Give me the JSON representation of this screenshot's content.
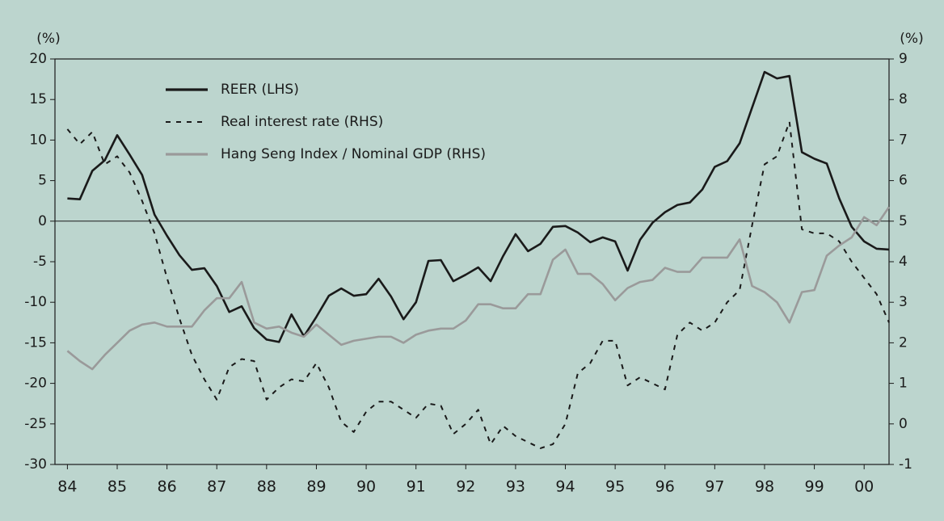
{
  "chart_data": {
    "type": "line",
    "ylabel": "(%)",
    "y2label": "(%)",
    "x": [
      84,
      84.25,
      84.5,
      84.75,
      85,
      85.25,
      85.5,
      85.75,
      86,
      86.25,
      86.5,
      86.75,
      87,
      87.25,
      87.5,
      87.75,
      88,
      88.25,
      88.5,
      88.75,
      89,
      89.25,
      89.5,
      89.75,
      90,
      90.25,
      90.5,
      90.75,
      91,
      91.25,
      91.5,
      91.75,
      92,
      92.25,
      92.5,
      92.75,
      93,
      93.25,
      93.5,
      93.75,
      94,
      94.25,
      94.5,
      94.75,
      95,
      95.25,
      95.5,
      95.75,
      96,
      96.25,
      96.5,
      96.75,
      97,
      97.25,
      97.5,
      97.75,
      98,
      98.25,
      98.5,
      98.75,
      99,
      99.25,
      99.5,
      99.75,
      100,
      100.25,
      100.5
    ],
    "xlim": [
      83.75,
      100.5
    ],
    "xticks": [
      84,
      85,
      86,
      87,
      88,
      89,
      90,
      91,
      92,
      93,
      94,
      95,
      96,
      97,
      98,
      99,
      {
        "value": 100,
        "label": "00"
      }
    ],
    "ylim": [
      -30,
      20
    ],
    "yticks": [
      20,
      15,
      10,
      5,
      0,
      -5,
      -10,
      -15,
      -20,
      -25,
      -30
    ],
    "y2lim": [
      -1,
      9
    ],
    "y2ticks": [
      9,
      8,
      7,
      6,
      5,
      4,
      3,
      2,
      1,
      0,
      -1
    ],
    "series": [
      {
        "name": "REER (LHS)",
        "color": "#1a1a1a",
        "dash": "solid",
        "values": [
          2.8,
          2.7,
          6.2,
          7.5,
          10.6,
          8.2,
          5.7,
          0.8,
          -1.8,
          -4.2,
          -6.0,
          -5.8,
          -8.0,
          -11.2,
          -10.5,
          -13.2,
          -14.6,
          -14.9,
          -11.5,
          -14.2,
          -11.8,
          -9.2,
          -8.3,
          -9.2,
          -9.0,
          -7.1,
          -9.3,
          -12.1,
          -10.0,
          -4.9,
          -4.8,
          -7.4,
          -6.6,
          -5.7,
          -7.4,
          -4.3,
          -1.6,
          -3.7,
          -2.8,
          -0.7,
          -0.6,
          -1.4,
          -2.6,
          -2.0,
          -2.5,
          -6.1,
          -2.3,
          -0.2,
          1.1,
          2.0,
          2.3,
          3.9,
          6.7,
          7.4,
          9.6,
          14.0,
          18.4,
          17.6,
          17.9,
          8.5,
          7.7,
          7.1,
          2.8,
          -0.7,
          -2.5,
          -3.4,
          -3.5
        ]
      },
      {
        "name": "Real interest rate (RHS)",
        "color": "#1a1a1a",
        "dash": "dashed",
        "axis": "y2",
        "values": [
          7.27,
          6.9,
          7.2,
          6.4,
          6.6,
          6.2,
          5.5,
          4.7,
          3.6,
          2.6,
          1.7,
          1.1,
          0.6,
          1.4,
          1.6,
          1.55,
          0.6,
          0.9,
          1.1,
          1.05,
          1.5,
          0.9,
          0.05,
          -0.2,
          0.3,
          0.55,
          0.55,
          0.35,
          0.15,
          0.5,
          0.45,
          -0.25,
          0.0,
          0.35,
          -0.5,
          -0.05,
          -0.3,
          -0.45,
          -0.6,
          -0.5,
          0.0,
          1.25,
          1.5,
          2.05,
          2.05,
          0.95,
          1.15,
          1.0,
          0.85,
          2.2,
          2.5,
          2.3,
          2.5,
          3.0,
          3.3,
          4.9,
          6.4,
          6.6,
          7.45,
          4.8,
          4.7,
          4.7,
          4.5,
          4.0,
          3.6,
          3.2,
          2.5
        ]
      },
      {
        "name": "Hang Seng Index / Nominal GDP (RHS)",
        "color": "#9a9a9a",
        "dash": "solid",
        "axis": "y2",
        "values": [
          1.8,
          1.55,
          1.35,
          1.7,
          2.0,
          2.3,
          2.45,
          2.5,
          2.4,
          2.4,
          2.4,
          2.8,
          3.1,
          3.1,
          3.5,
          2.5,
          2.35,
          2.4,
          2.25,
          2.15,
          2.45,
          2.2,
          1.95,
          2.05,
          2.1,
          2.15,
          2.15,
          2.0,
          2.2,
          2.3,
          2.35,
          2.35,
          2.55,
          2.95,
          2.95,
          2.85,
          2.85,
          3.2,
          3.2,
          4.05,
          4.3,
          3.7,
          3.7,
          3.45,
          3.05,
          3.35,
          3.5,
          3.55,
          3.85,
          3.75,
          3.75,
          4.1,
          4.1,
          4.1,
          4.55,
          3.4,
          3.25,
          3.0,
          2.5,
          3.25,
          3.3,
          4.15,
          4.4,
          4.6,
          5.1,
          4.9,
          5.35
        ]
      }
    ],
    "zero_line": true,
    "legend": "upper left"
  }
}
